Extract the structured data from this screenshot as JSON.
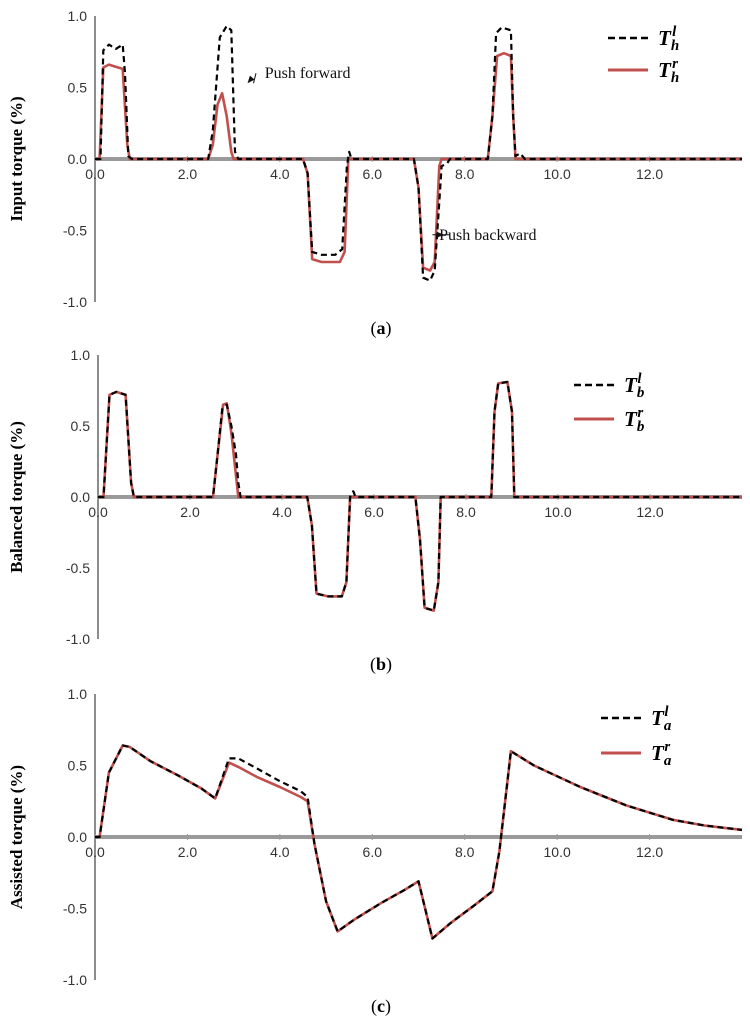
{
  "chart_data": [
    {
      "type": "line",
      "panel_caption": "(a)",
      "caption_letter": "a",
      "ylabel": "Input torque (%)",
      "xlim": [
        0,
        14
      ],
      "ylim": [
        -1.0,
        1.0
      ],
      "x_ticks": [
        "0.0",
        "2.0",
        "4.0",
        "6.0",
        "8.0",
        "10.0",
        "12.0"
      ],
      "y_ticks": [
        "1.0",
        "0.5",
        "0.0",
        "-0.5",
        "-1.0"
      ],
      "legend_position": "top-right",
      "series": [
        {
          "name_base": "T",
          "name_sub": "h",
          "name_sup": "l",
          "style": "dashed",
          "color": "#000000",
          "points": [
            [
              0,
              0
            ],
            [
              0.12,
              0
            ],
            [
              0.18,
              0.76
            ],
            [
              0.3,
              0.8
            ],
            [
              0.45,
              0.77
            ],
            [
              0.6,
              0.8
            ],
            [
              0.65,
              0.6
            ],
            [
              0.72,
              0.02
            ],
            [
              0.8,
              0
            ],
            [
              2.45,
              0
            ],
            [
              2.55,
              0.2
            ],
            [
              2.7,
              0.85
            ],
            [
              2.85,
              0.93
            ],
            [
              2.95,
              0.9
            ],
            [
              3.03,
              0.05
            ],
            [
              3.1,
              0
            ],
            [
              4.5,
              0
            ],
            [
              4.6,
              -0.1
            ],
            [
              4.7,
              -0.65
            ],
            [
              4.9,
              -0.67
            ],
            [
              5.2,
              -0.67
            ],
            [
              5.35,
              -0.63
            ],
            [
              5.45,
              -0.05
            ],
            [
              5.5,
              0.05
            ],
            [
              5.55,
              0
            ],
            [
              6.9,
              0
            ],
            [
              7.0,
              -0.2
            ],
            [
              7.1,
              -0.83
            ],
            [
              7.25,
              -0.85
            ],
            [
              7.35,
              -0.78
            ],
            [
              7.45,
              -0.3
            ],
            [
              7.5,
              -0.05
            ],
            [
              7.62,
              -0.03
            ],
            [
              7.68,
              0
            ],
            [
              8.5,
              0
            ],
            [
              8.6,
              0.3
            ],
            [
              8.68,
              0.88
            ],
            [
              8.8,
              0.92
            ],
            [
              9.0,
              0.9
            ],
            [
              9.05,
              0.3
            ],
            [
              9.1,
              0.02
            ],
            [
              9.2,
              0.04
            ],
            [
              9.3,
              0
            ],
            [
              14,
              0
            ]
          ]
        },
        {
          "name_base": "T",
          "name_sub": "h",
          "name_sup": "r",
          "style": "solid",
          "color": "#c0504d",
          "points": [
            [
              0,
              0
            ],
            [
              0.1,
              0
            ],
            [
              0.18,
              0.64
            ],
            [
              0.3,
              0.66
            ],
            [
              0.5,
              0.64
            ],
            [
              0.6,
              0.63
            ],
            [
              0.7,
              0.1
            ],
            [
              0.75,
              0
            ],
            [
              2.45,
              0
            ],
            [
              2.55,
              0.1
            ],
            [
              2.65,
              0.38
            ],
            [
              2.75,
              0.46
            ],
            [
              2.85,
              0.3
            ],
            [
              2.95,
              0.05
            ],
            [
              3.0,
              0
            ],
            [
              4.5,
              0
            ],
            [
              4.6,
              -0.1
            ],
            [
              4.7,
              -0.7
            ],
            [
              4.9,
              -0.72
            ],
            [
              5.3,
              -0.72
            ],
            [
              5.4,
              -0.65
            ],
            [
              5.48,
              0
            ],
            [
              6.9,
              0
            ],
            [
              7.0,
              -0.2
            ],
            [
              7.1,
              -0.76
            ],
            [
              7.25,
              -0.78
            ],
            [
              7.35,
              -0.72
            ],
            [
              7.45,
              -0.05
            ],
            [
              7.5,
              0
            ],
            [
              8.5,
              0
            ],
            [
              8.6,
              0.3
            ],
            [
              8.7,
              0.72
            ],
            [
              8.85,
              0.74
            ],
            [
              9.0,
              0.72
            ],
            [
              9.05,
              0.3
            ],
            [
              9.1,
              0
            ],
            [
              14,
              0
            ]
          ]
        }
      ],
      "annotations": [
        {
          "text": "Push forward",
          "x": 4.6,
          "y": 0.6,
          "arrow_to": [
            3.3,
            0.53
          ]
        },
        {
          "text": "Push backward",
          "x": 8.5,
          "y": -0.53,
          "arrow_to": [
            7.55,
            -0.53
          ]
        }
      ]
    },
    {
      "type": "line",
      "panel_caption": "(b)",
      "caption_letter": "b",
      "ylabel": "Balanced torque (%)",
      "xlim": [
        0,
        14
      ],
      "ylim": [
        -1.0,
        1.0
      ],
      "x_ticks": [
        "0.0",
        "2.0",
        "4.0",
        "6.0",
        "8.0",
        "10.0",
        "12.0"
      ],
      "y_ticks": [
        "1.0",
        "0.5",
        "0.0",
        "-0.5",
        "-1.0"
      ],
      "legend_position": "top-right",
      "series": [
        {
          "name_base": "T",
          "name_sub": "b",
          "name_sup": "l",
          "style": "dashed",
          "color": "#000000",
          "points": [
            [
              0,
              0
            ],
            [
              0.12,
              0
            ],
            [
              0.25,
              0.72
            ],
            [
              0.4,
              0.74
            ],
            [
              0.6,
              0.72
            ],
            [
              0.72,
              0.1
            ],
            [
              0.78,
              0
            ],
            [
              2.5,
              0
            ],
            [
              2.6,
              0.3
            ],
            [
              2.7,
              0.62
            ],
            [
              2.8,
              0.65
            ],
            [
              2.9,
              0.5
            ],
            [
              3.0,
              0.3
            ],
            [
              3.05,
              0.1
            ],
            [
              3.1,
              0
            ],
            [
              4.55,
              0
            ],
            [
              4.65,
              -0.2
            ],
            [
              4.75,
              -0.68
            ],
            [
              5.0,
              -0.7
            ],
            [
              5.3,
              -0.7
            ],
            [
              5.4,
              -0.6
            ],
            [
              5.48,
              0
            ],
            [
              5.55,
              0.04
            ],
            [
              5.6,
              0
            ],
            [
              6.9,
              0
            ],
            [
              7.0,
              -0.3
            ],
            [
              7.1,
              -0.78
            ],
            [
              7.3,
              -0.8
            ],
            [
              7.4,
              -0.6
            ],
            [
              7.45,
              0
            ],
            [
              8.55,
              0
            ],
            [
              8.62,
              0.6
            ],
            [
              8.7,
              0.8
            ],
            [
              8.9,
              0.81
            ],
            [
              9.0,
              0.6
            ],
            [
              9.05,
              0
            ],
            [
              14,
              0
            ]
          ]
        },
        {
          "name_base": "T",
          "name_sub": "b",
          "name_sup": "r",
          "style": "solid",
          "color": "#c0504d",
          "points": [
            [
              0,
              0
            ],
            [
              0.12,
              0
            ],
            [
              0.25,
              0.72
            ],
            [
              0.4,
              0.74
            ],
            [
              0.6,
              0.72
            ],
            [
              0.72,
              0.1
            ],
            [
              0.78,
              0
            ],
            [
              2.5,
              0
            ],
            [
              2.6,
              0.3
            ],
            [
              2.72,
              0.65
            ],
            [
              2.8,
              0.66
            ],
            [
              2.9,
              0.45
            ],
            [
              3.0,
              0.15
            ],
            [
              3.05,
              0
            ],
            [
              4.55,
              0
            ],
            [
              4.65,
              -0.2
            ],
            [
              4.75,
              -0.68
            ],
            [
              5.0,
              -0.7
            ],
            [
              5.3,
              -0.7
            ],
            [
              5.4,
              -0.6
            ],
            [
              5.48,
              0
            ],
            [
              6.9,
              0
            ],
            [
              7.0,
              -0.3
            ],
            [
              7.1,
              -0.78
            ],
            [
              7.3,
              -0.8
            ],
            [
              7.4,
              -0.6
            ],
            [
              7.45,
              0
            ],
            [
              8.55,
              0
            ],
            [
              8.62,
              0.6
            ],
            [
              8.7,
              0.8
            ],
            [
              8.9,
              0.81
            ],
            [
              9.0,
              0.6
            ],
            [
              9.05,
              0
            ],
            [
              14,
              0
            ]
          ]
        }
      ]
    },
    {
      "type": "line",
      "panel_caption": "(c)",
      "caption_letter": "c",
      "ylabel": "Assisted torque (%)",
      "xlim": [
        0,
        14
      ],
      "ylim": [
        -1.0,
        1.0
      ],
      "x_ticks": [
        "0.0",
        "2.0",
        "4.0",
        "6.0",
        "8.0",
        "10.0",
        "12.0"
      ],
      "y_ticks": [
        "1.0",
        "0.5",
        "0.0",
        "-0.5",
        "-1.0"
      ],
      "legend_position": "top-right",
      "series": [
        {
          "name_base": "T",
          "name_sub": "a",
          "name_sup": "l",
          "style": "dashed",
          "color": "#000000",
          "points": [
            [
              0,
              0
            ],
            [
              0.1,
              0
            ],
            [
              0.3,
              0.45
            ],
            [
              0.6,
              0.64
            ],
            [
              0.75,
              0.63
            ],
            [
              1.2,
              0.53
            ],
            [
              1.8,
              0.43
            ],
            [
              2.3,
              0.34
            ],
            [
              2.6,
              0.27
            ],
            [
              2.9,
              0.55
            ],
            [
              3.1,
              0.55
            ],
            [
              3.5,
              0.48
            ],
            [
              4.0,
              0.39
            ],
            [
              4.45,
              0.32
            ],
            [
              4.6,
              0.28
            ],
            [
              4.75,
              -0.05
            ],
            [
              5.0,
              -0.45
            ],
            [
              5.25,
              -0.66
            ],
            [
              5.6,
              -0.58
            ],
            [
              6.2,
              -0.46
            ],
            [
              6.7,
              -0.37
            ],
            [
              7.0,
              -0.31
            ],
            [
              7.3,
              -0.71
            ],
            [
              7.7,
              -0.6
            ],
            [
              8.2,
              -0.48
            ],
            [
              8.6,
              -0.38
            ],
            [
              8.75,
              -0.1
            ],
            [
              9.0,
              0.6
            ],
            [
              9.5,
              0.5
            ],
            [
              10.5,
              0.35
            ],
            [
              11.5,
              0.22
            ],
            [
              12.5,
              0.12
            ],
            [
              13.2,
              0.08
            ],
            [
              14,
              0.05
            ]
          ]
        },
        {
          "name_base": "T",
          "name_sub": "a",
          "name_sup": "r",
          "style": "solid",
          "color": "#c0504d",
          "points": [
            [
              0,
              0
            ],
            [
              0.1,
              0
            ],
            [
              0.3,
              0.45
            ],
            [
              0.6,
              0.64
            ],
            [
              0.75,
              0.63
            ],
            [
              1.2,
              0.53
            ],
            [
              1.8,
              0.43
            ],
            [
              2.3,
              0.34
            ],
            [
              2.6,
              0.27
            ],
            [
              2.9,
              0.52
            ],
            [
              3.1,
              0.49
            ],
            [
              3.5,
              0.42
            ],
            [
              4.0,
              0.35
            ],
            [
              4.45,
              0.28
            ],
            [
              4.6,
              0.25
            ],
            [
              4.75,
              -0.05
            ],
            [
              5.0,
              -0.45
            ],
            [
              5.25,
              -0.66
            ],
            [
              5.6,
              -0.58
            ],
            [
              6.2,
              -0.46
            ],
            [
              6.7,
              -0.37
            ],
            [
              7.0,
              -0.31
            ],
            [
              7.3,
              -0.71
            ],
            [
              7.7,
              -0.6
            ],
            [
              8.2,
              -0.48
            ],
            [
              8.6,
              -0.38
            ],
            [
              8.75,
              -0.1
            ],
            [
              9.0,
              0.6
            ],
            [
              9.5,
              0.5
            ],
            [
              10.5,
              0.35
            ],
            [
              11.5,
              0.22
            ],
            [
              12.5,
              0.12
            ],
            [
              13.2,
              0.08
            ],
            [
              14,
              0.05
            ]
          ]
        }
      ]
    }
  ]
}
